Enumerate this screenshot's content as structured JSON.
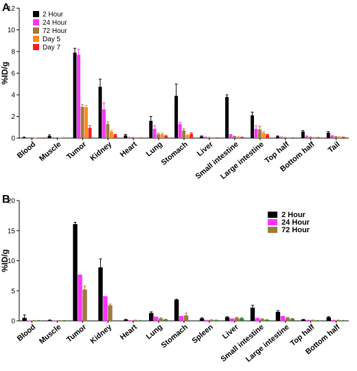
{
  "chart_data": [
    {
      "panel": "A",
      "type": "bar",
      "ylabel": "%ID/g",
      "ylim": [
        0,
        12
      ],
      "yticks": [
        0,
        2,
        4,
        6,
        8,
        10,
        12
      ],
      "categories": [
        "Blood",
        "Muscle",
        "Tumor",
        "Kidney",
        "Heart",
        "Lung",
        "Stomach",
        "Liver",
        "Small intestine",
        "Large intestine",
        "Top half",
        "Bottom half",
        "Tail"
      ],
      "legend_position": "top-left",
      "series": [
        {
          "name": "2 Hour",
          "color": "#000000",
          "values": [
            0.05,
            0.2,
            7.9,
            4.75,
            0.25,
            1.6,
            3.9,
            0.15,
            3.8,
            2.1,
            0.15,
            0.6,
            0.5
          ],
          "errors": [
            0.05,
            0.1,
            0.4,
            0.7,
            0.1,
            0.4,
            1.1,
            0.05,
            0.2,
            0.3,
            0.05,
            0.1,
            0.1
          ]
        },
        {
          "name": "24 Hour",
          "color": "#ff33ff",
          "values": [
            0.02,
            0.03,
            7.7,
            2.65,
            0.05,
            0.85,
            1.3,
            0.08,
            0.3,
            0.85,
            0.08,
            0.15,
            0.2
          ],
          "errors": [
            0.02,
            0.02,
            0.5,
            0.6,
            0.03,
            0.3,
            0.15,
            0.03,
            0.05,
            0.3,
            0.03,
            0.05,
            0.05
          ]
        },
        {
          "name": "72 Hour",
          "color": "#9e7a3c",
          "values": [
            0.02,
            0.02,
            2.9,
            1.3,
            0.04,
            0.35,
            0.7,
            0.05,
            0.15,
            0.8,
            0.05,
            0.08,
            0.12
          ],
          "errors": [
            0.02,
            0.02,
            0.2,
            0.2,
            0.02,
            0.1,
            0.15,
            0.02,
            0.03,
            0.3,
            0.02,
            0.03,
            0.03
          ]
        },
        {
          "name": "Day 5",
          "color": "#ff8c1a",
          "values": [
            0.01,
            0.02,
            2.85,
            0.6,
            0.03,
            0.35,
            0.25,
            0.04,
            0.1,
            0.5,
            0.04,
            0.06,
            0.1
          ],
          "errors": [
            0.01,
            0.01,
            0.15,
            0.1,
            0.02,
            0.1,
            0.05,
            0.02,
            0.03,
            0.1,
            0.02,
            0.02,
            0.03
          ]
        },
        {
          "name": "Day 7",
          "color": "#ff1a1a",
          "values": [
            0.01,
            0.01,
            0.95,
            0.3,
            0.02,
            0.2,
            0.4,
            0.03,
            0.08,
            0.3,
            0.03,
            0.05,
            0.08
          ],
          "errors": [
            0.01,
            0.01,
            0.2,
            0.05,
            0.01,
            0.05,
            0.1,
            0.01,
            0.02,
            0.05,
            0.01,
            0.02,
            0.02
          ]
        }
      ]
    },
    {
      "panel": "B",
      "type": "bar",
      "ylabel": "%ID/g",
      "ylim": [
        0,
        20
      ],
      "yticks": [
        0,
        5,
        10,
        15,
        20
      ],
      "categories": [
        "Blood",
        "Muscle",
        "Tumor",
        "Kidney",
        "Heart",
        "Lung",
        "Stomach",
        "Spleen",
        "Liver",
        "Small intestine",
        "Large intestine",
        "Top half",
        "Bottom half"
      ],
      "legend_position": "top-right",
      "series": [
        {
          "name": "2 Hour",
          "color": "#000000",
          "values": [
            0.5,
            0.1,
            16.1,
            8.9,
            0.2,
            1.3,
            3.5,
            0.4,
            0.6,
            2.2,
            1.5,
            0.2,
            0.6
          ],
          "errors": [
            0.5,
            0.05,
            0.3,
            1.4,
            0.05,
            0.2,
            0.1,
            0.1,
            0.1,
            0.4,
            0.2,
            0.05,
            0.1
          ]
        },
        {
          "name": "24 Hour",
          "color": "#ff33ff",
          "values": [
            0.05,
            0.05,
            7.7,
            4.1,
            0.1,
            0.7,
            0.8,
            0.15,
            0.4,
            0.5,
            0.8,
            0.15,
            0.15
          ]
        },
        {
          "name": "72 Hour",
          "color": "#9e7a3c",
          "values": [
            0.05,
            0.05,
            5.2,
            2.6,
            0.1,
            0.4,
            0.9,
            0.15,
            0.5,
            0.3,
            0.5,
            0.1,
            0.1
          ],
          "errors": [
            0.02,
            0.02,
            0.6,
            0.2,
            0.03,
            0.1,
            0.4,
            0.05,
            0.1,
            0.05,
            0.1,
            0.03,
            0.03
          ]
        },
        {
          "name": "",
          "color": "#2e7d32",
          "values": [
            0.05,
            0.05,
            0,
            0,
            0.05,
            0.2,
            0,
            0.1,
            0.4,
            0.15,
            0.3,
            0.05,
            0.05
          ],
          "errors": [
            0.02,
            0.02,
            0,
            0,
            0.02,
            0.05,
            0,
            0.03,
            0.1,
            0.05,
            0.1,
            0.02,
            0.02
          ]
        }
      ]
    }
  ],
  "panels": {
    "a_label": "A",
    "b_label": "B"
  }
}
